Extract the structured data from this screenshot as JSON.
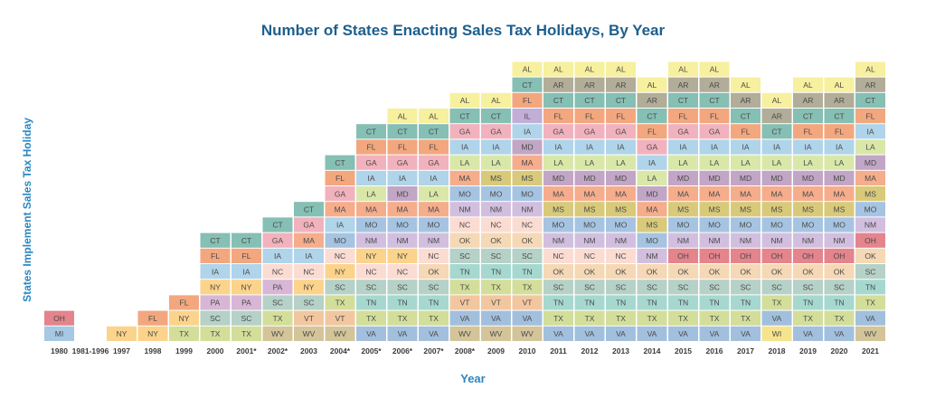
{
  "chart_data": {
    "type": "table",
    "title": "Number of States Enacting Sales Tax Holidays, By Year",
    "xlabel": "Year",
    "ylabel": "States Implement Sales Tax Holiday",
    "columns": [
      {
        "year": "1980",
        "states": [
          "MI",
          "OH"
        ]
      },
      {
        "year": "1981-1996",
        "states": []
      },
      {
        "year": "1997",
        "states": [
          "NY"
        ]
      },
      {
        "year": "1998",
        "states": [
          "NY",
          "FL"
        ]
      },
      {
        "year": "1999",
        "states": [
          "TX",
          "NY",
          "FL"
        ]
      },
      {
        "year": "2000",
        "states": [
          "TX",
          "SC",
          "PA",
          "NY",
          "IA",
          "FL",
          "CT"
        ]
      },
      {
        "year": "2001*",
        "states": [
          "TX",
          "SC",
          "PA",
          "NY",
          "IA",
          "FL",
          "CT"
        ]
      },
      {
        "year": "2002*",
        "states": [
          "WV",
          "TX",
          "SC",
          "PA",
          "NC",
          "IA",
          "GA",
          "CT"
        ]
      },
      {
        "year": "2003",
        "states": [
          "WV",
          "VT",
          "SC",
          "NY",
          "NC",
          "IA",
          "MA",
          "GA",
          "CT"
        ]
      },
      {
        "year": "2004*",
        "states": [
          "WV",
          "VT",
          "TX",
          "SC",
          "NY",
          "NC",
          "MO",
          "IA",
          "MA",
          "GA",
          "FL",
          "CT"
        ]
      },
      {
        "year": "2005*",
        "states": [
          "VA",
          "TX",
          "TN",
          "SC",
          "NC",
          "NY",
          "NM",
          "MO",
          "MA",
          "LA",
          "IA",
          "GA",
          "FL",
          "CT"
        ]
      },
      {
        "year": "2006*",
        "states": [
          "VA",
          "TX",
          "TN",
          "SC",
          "NC",
          "NY",
          "NM",
          "MO",
          "MA",
          "MD",
          "IA",
          "GA",
          "FL",
          "CT",
          "AL"
        ]
      },
      {
        "year": "2007*",
        "states": [
          "VA",
          "TX",
          "TN",
          "SC",
          "OK",
          "NC",
          "NM",
          "MO",
          "MA",
          "LA",
          "IA",
          "GA",
          "FL",
          "CT",
          "AL"
        ]
      },
      {
        "year": "2008*",
        "states": [
          "WV",
          "VA",
          "VT",
          "TX",
          "TN",
          "SC",
          "OK",
          "NC",
          "NM",
          "MO",
          "MA",
          "LA",
          "IA",
          "GA",
          "CT",
          "AL"
        ]
      },
      {
        "year": "2009",
        "states": [
          "WV",
          "VA",
          "VT",
          "TX",
          "TN",
          "SC",
          "OK",
          "NC",
          "NM",
          "MO",
          "MS",
          "LA",
          "IA",
          "GA",
          "CT",
          "AL"
        ]
      },
      {
        "year": "2010",
        "states": [
          "WV",
          "VA",
          "VT",
          "TX",
          "TN",
          "SC",
          "OK",
          "NC",
          "NM",
          "MO",
          "MS",
          "MA",
          "MD",
          "IA",
          "IL",
          "FL",
          "CT",
          "AL"
        ]
      },
      {
        "year": "2011",
        "states": [
          "VA",
          "TX",
          "TN",
          "SC",
          "OK",
          "NC",
          "NM",
          "MO",
          "MS",
          "MA",
          "MD",
          "LA",
          "IA",
          "GA",
          "FL",
          "CT",
          "AR",
          "AL"
        ]
      },
      {
        "year": "2012",
        "states": [
          "VA",
          "TX",
          "TN",
          "SC",
          "OK",
          "NC",
          "NM",
          "MO",
          "MS",
          "MA",
          "MD",
          "LA",
          "IA",
          "GA",
          "FL",
          "CT",
          "AR",
          "AL"
        ]
      },
      {
        "year": "2013",
        "states": [
          "VA",
          "TX",
          "TN",
          "SC",
          "OK",
          "NC",
          "NM",
          "MO",
          "MS",
          "MA",
          "MD",
          "LA",
          "IA",
          "GA",
          "FL",
          "CT",
          "AR",
          "AL"
        ]
      },
      {
        "year": "2014",
        "states": [
          "VA",
          "TX",
          "TN",
          "SC",
          "OK",
          "NM",
          "MO",
          "MS",
          "MA",
          "MD",
          "LA",
          "IA",
          "GA",
          "FL",
          "CT",
          "AR",
          "AL"
        ]
      },
      {
        "year": "2015",
        "states": [
          "VA",
          "TX",
          "TN",
          "SC",
          "OK",
          "OH",
          "NM",
          "MO",
          "MS",
          "MA",
          "MD",
          "LA",
          "IA",
          "GA",
          "FL",
          "CT",
          "AR",
          "AL"
        ]
      },
      {
        "year": "2016",
        "states": [
          "VA",
          "TX",
          "TN",
          "SC",
          "OK",
          "OH",
          "NM",
          "MO",
          "MS",
          "MA",
          "MD",
          "LA",
          "IA",
          "GA",
          "FL",
          "CT",
          "AR",
          "AL"
        ]
      },
      {
        "year": "2017",
        "states": [
          "VA",
          "TX",
          "TN",
          "SC",
          "OK",
          "OH",
          "NM",
          "MO",
          "MS",
          "MA",
          "MD",
          "LA",
          "IA",
          "FL",
          "CT",
          "AR",
          "AL"
        ]
      },
      {
        "year": "2018",
        "states": [
          "WI",
          "VA",
          "TX",
          "SC",
          "OK",
          "OH",
          "NM",
          "MO",
          "MS",
          "MA",
          "MD",
          "LA",
          "IA",
          "CT",
          "AR",
          "AL"
        ]
      },
      {
        "year": "2019",
        "states": [
          "VA",
          "TX",
          "TN",
          "SC",
          "OK",
          "OH",
          "NM",
          "MO",
          "MS",
          "MA",
          "MD",
          "LA",
          "IA",
          "FL",
          "CT",
          "AR",
          "AL"
        ]
      },
      {
        "year": "2020",
        "states": [
          "VA",
          "TX",
          "TN",
          "SC",
          "OK",
          "OH",
          "NM",
          "MO",
          "MS",
          "MA",
          "MD",
          "LA",
          "IA",
          "FL",
          "CT",
          "AR",
          "AL"
        ]
      },
      {
        "year": "2021",
        "states": [
          "WV",
          "VA",
          "TX",
          "TN",
          "SC",
          "OK",
          "OH",
          "NM",
          "MO",
          "MS",
          "MA",
          "MD",
          "LA",
          "IA",
          "FL",
          "CT",
          "AR",
          "AL"
        ]
      }
    ],
    "state_colors": {
      "AL": "#f7f09e",
      "AR": "#b2ad98",
      "CT": "#86bfb4",
      "FL": "#f3a77e",
      "GA": "#f2b2bd",
      "IA": "#b0d4ea",
      "IL": "#c2aed7",
      "LA": "#d9e8a8",
      "MA": "#f5ad8c",
      "MD": "#c2a6c6",
      "MI": "#a6c8e3",
      "MO": "#a6c4e2",
      "MS": "#d8ca7a",
      "NC": "#fbdcd3",
      "NM": "#d2bfdf",
      "NY": "#fbd38b",
      "OH": "#e4848c",
      "OK": "#f5d8b5",
      "PA": "#d7b7d5",
      "SC": "#b6d1c7",
      "TN": "#a6d8cf",
      "TX": "#d3de9a",
      "VA": "#a2c0dd",
      "VT": "#f2c7a0",
      "WI": "#f5e48d",
      "WV": "#d3c49a"
    }
  }
}
